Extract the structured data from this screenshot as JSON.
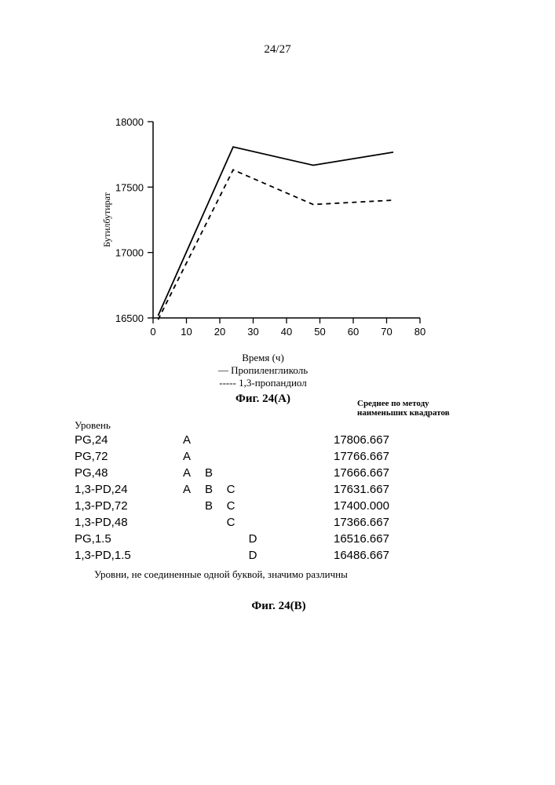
{
  "page_number": "24/27",
  "chart": {
    "type": "line",
    "ylabel": "Бутилбутират",
    "xlabel": "Время (ч)",
    "xlim": [
      0,
      80
    ],
    "ylim": [
      16500,
      18000
    ],
    "xtick_positions": [
      0,
      10,
      20,
      30,
      40,
      50,
      60,
      70,
      80
    ],
    "xtick_labels": [
      "0",
      "10",
      "20",
      "30",
      "40",
      "50",
      "60",
      "70",
      "80"
    ],
    "ytick_positions": [
      16500,
      17000,
      17500,
      18000
    ],
    "ytick_labels": [
      "16500",
      "17000",
      "17500",
      "18000"
    ],
    "label_fontsize": 12,
    "tick_fontsize": 13,
    "background_color": "#ffffff",
    "axis_color": "#000000",
    "line_width": 1.8,
    "series": [
      {
        "name": "Пропиленгликоль",
        "dash": "none",
        "color": "#000000",
        "x": [
          1.5,
          24,
          48,
          72
        ],
        "y": [
          16517,
          17807,
          17667,
          17767
        ]
      },
      {
        "name": "1,3-пропандиол",
        "dash": "6,5",
        "color": "#000000",
        "x": [
          1.5,
          24,
          48,
          72
        ],
        "y": [
          16487,
          17632,
          17367,
          17400
        ]
      }
    ],
    "legend": {
      "items": [
        {
          "prefix": "— ",
          "label": "Пропиленгликоль"
        },
        {
          "prefix": "----- ",
          "label": "1,3-пропандиол"
        }
      ]
    },
    "caption": "Фиг. 24(A)"
  },
  "table": {
    "header_left": "Уровень",
    "header_right": "Среднее по методу наименьших квадратов",
    "letter_columns": [
      "A",
      "B",
      "C",
      "D"
    ],
    "rows": [
      {
        "level": "PG,24",
        "letters": [
          "A",
          "",
          "",
          ""
        ],
        "mean": "17806.667"
      },
      {
        "level": "PG,72",
        "letters": [
          "A",
          "",
          "",
          ""
        ],
        "mean": "17766.667"
      },
      {
        "level": "PG,48",
        "letters": [
          "A",
          "B",
          "",
          ""
        ],
        "mean": "17666.667"
      },
      {
        "level": "1,3-PD,24",
        "letters": [
          "A",
          "B",
          "C",
          ""
        ],
        "mean": "17631.667"
      },
      {
        "level": "1,3-PD,72",
        "letters": [
          "",
          "B",
          "C",
          ""
        ],
        "mean": "17400.000"
      },
      {
        "level": "1,3-PD,48",
        "letters": [
          "",
          "",
          "C",
          ""
        ],
        "mean": "17366.667"
      },
      {
        "level": "PG,1.5",
        "letters": [
          "",
          "",
          "",
          "D"
        ],
        "mean": "16516.667"
      },
      {
        "level": "1,3-PD,1.5",
        "letters": [
          "",
          "",
          "",
          "D"
        ],
        "mean": "16486.667"
      }
    ],
    "note": "Уровни, не соединенные одной буквой, значимо различны",
    "caption": "Фиг. 24(B)"
  }
}
